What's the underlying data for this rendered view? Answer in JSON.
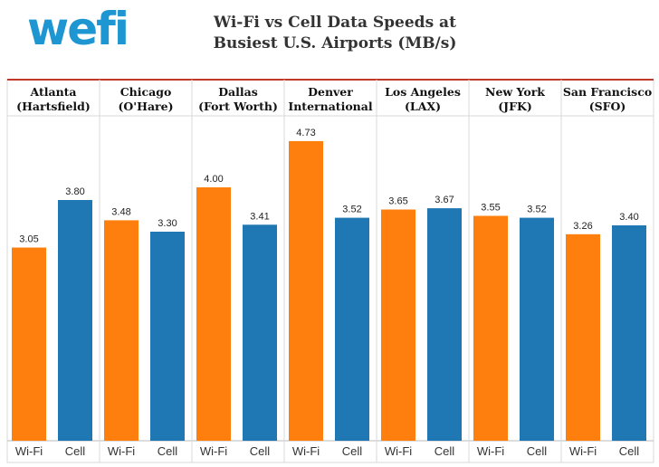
{
  "logo": {
    "text": "wefi"
  },
  "title": {
    "line1": "Wi-Fi vs Cell Data Speeds at",
    "line2": "Busiest U.S. Airports (MB/s)"
  },
  "colors": {
    "wifi": "#ff7f0e",
    "cell": "#1f77b4",
    "header_rule": "#c0392b"
  },
  "chart_data": {
    "type": "bar",
    "title": "Wi-Fi vs Cell Data Speeds at Busiest U.S. Airports (MB/s)",
    "categories": [
      "Wi-Fi",
      "Cell"
    ],
    "ylim": [
      0,
      5
    ],
    "grid": false,
    "panels": [
      {
        "name": [
          "Atlanta",
          "(Hartsfield)"
        ],
        "values": [
          3.05,
          3.8
        ],
        "labels": [
          "3.05",
          "3.80"
        ]
      },
      {
        "name": [
          "Chicago",
          "(O'Hare)"
        ],
        "values": [
          3.48,
          3.3
        ],
        "labels": [
          "3.48",
          "3.30"
        ]
      },
      {
        "name": [
          "Dallas",
          "(Fort Worth)"
        ],
        "values": [
          4.0,
          3.41
        ],
        "labels": [
          "4.00",
          "3.41"
        ]
      },
      {
        "name": [
          "Denver",
          "International"
        ],
        "values": [
          4.73,
          3.52
        ],
        "labels": [
          "4.73",
          "3.52"
        ]
      },
      {
        "name": [
          "Los Angeles",
          "(LAX)"
        ],
        "values": [
          3.65,
          3.67
        ],
        "labels": [
          "3.65",
          "3.67"
        ]
      },
      {
        "name": [
          "New York",
          "(JFK)"
        ],
        "values": [
          3.55,
          3.52
        ],
        "labels": [
          "3.55",
          "3.52"
        ]
      },
      {
        "name": [
          "San Francisco",
          "(SFO)"
        ],
        "values": [
          3.26,
          3.4
        ],
        "labels": [
          "3.26",
          "3.40"
        ]
      }
    ]
  }
}
